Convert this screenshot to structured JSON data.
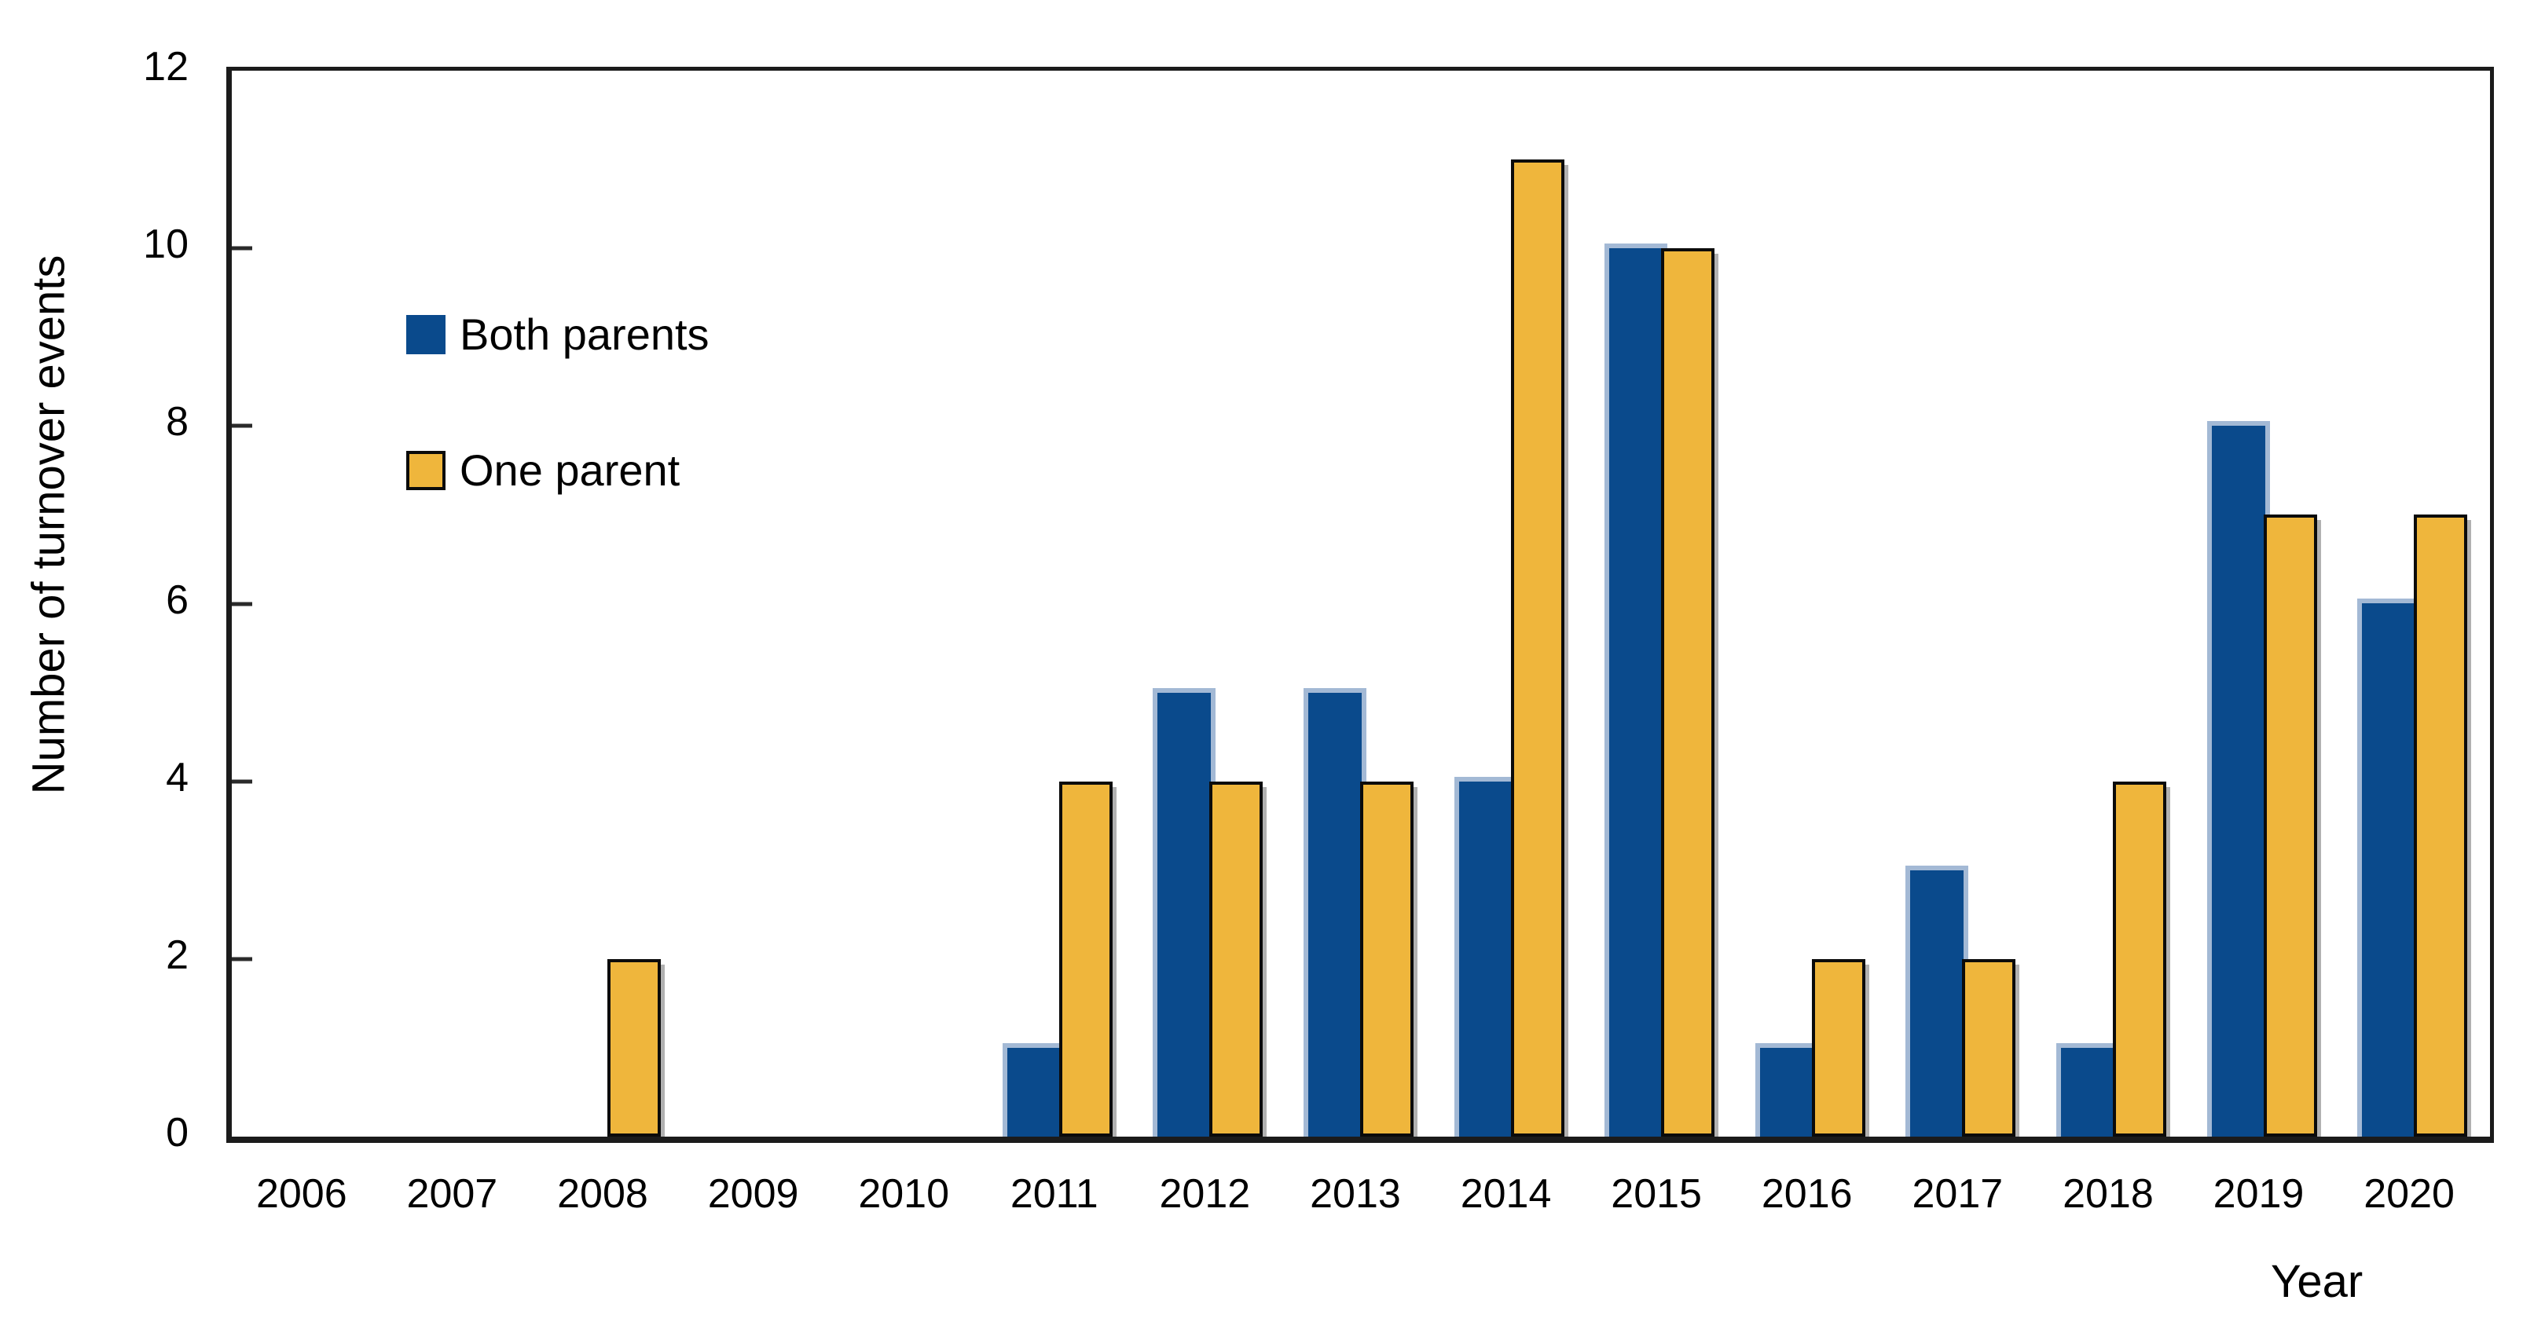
{
  "chart_data": {
    "type": "bar",
    "title": "",
    "xlabel": "Year",
    "ylabel": "Number of turnover events",
    "categories": [
      "2006",
      "2007",
      "2008",
      "2009",
      "2010",
      "2011",
      "2012",
      "2013",
      "2014",
      "2015",
      "2016",
      "2017",
      "2018",
      "2019",
      "2020"
    ],
    "series": [
      {
        "name": "Both parents",
        "color": "#0a4a8c",
        "values": [
          0,
          0,
          0,
          0,
          0,
          1,
          5,
          5,
          4,
          10,
          1,
          3,
          1,
          8,
          6
        ]
      },
      {
        "name": "One parent",
        "color": "#efb63c",
        "values": [
          0,
          0,
          2,
          0,
          0,
          4,
          4,
          4,
          11,
          10,
          2,
          2,
          4,
          7,
          7
        ]
      }
    ],
    "ylim": [
      0,
      12
    ],
    "yticks": [
      0,
      2,
      4,
      6,
      8,
      10,
      12
    ],
    "grid": false,
    "legend_position": "inside-upper-left",
    "styles": {
      "both_glow_color": "#8ca7cb",
      "one_border_color": "#0b0b0b",
      "one_shadow_color": "#7d7d7d",
      "frame_color": "#1b1b1b"
    }
  }
}
